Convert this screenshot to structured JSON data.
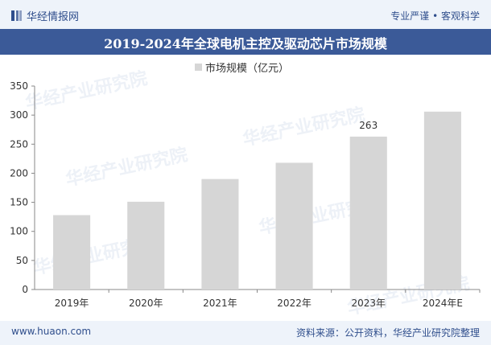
{
  "header": {
    "brand": "华经情报网",
    "slogan": "专业严谨 • 客观科学",
    "logo_icon": "bar-logo-icon"
  },
  "watermark": {
    "text": "华经产业研究院",
    "url": "www.huaon.com"
  },
  "footer": {
    "site": "www.huaon.com",
    "source": "资料来源：公开资料，华经产业研究院整理"
  },
  "colors": {
    "bar": "#d6d6d6",
    "title_band": "#3b5a98",
    "accent": "#2f4e8c"
  },
  "chart_data": {
    "type": "bar",
    "title": "2019-2024年全球电机主控及驱动芯片市场规模",
    "legend": "市场规模（亿元）",
    "categories": [
      "2019年",
      "2020年",
      "2021年",
      "2022年",
      "2023年",
      "2024年E"
    ],
    "values": [
      128,
      151,
      190,
      218,
      263,
      306
    ],
    "data_labels": [
      "",
      "",
      "",
      "",
      "263",
      ""
    ],
    "ylim": [
      0,
      350
    ],
    "yticks": [
      0,
      50,
      100,
      150,
      200,
      250,
      300,
      350
    ],
    "grid": false
  }
}
